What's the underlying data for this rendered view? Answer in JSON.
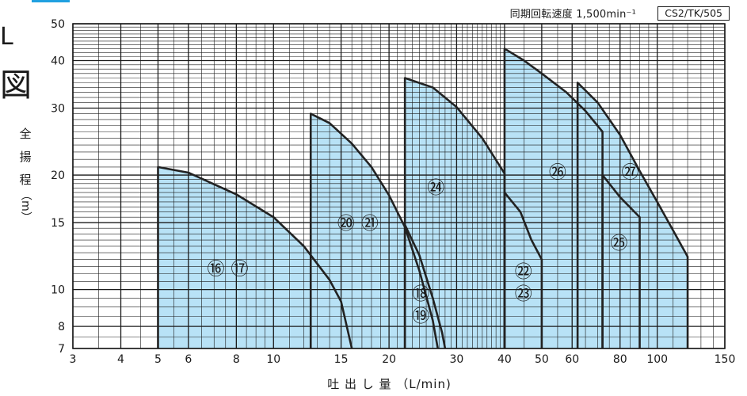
{
  "header": {
    "speed_note": "同期回転速度 1,500min⁻¹",
    "code": "CS2/TK/505"
  },
  "left_title_fragments": [
    "L",
    "図"
  ],
  "chart_data": {
    "type": "area",
    "title": "",
    "xlabel": "吐 出 し 量 （L/min)",
    "ylabel": [
      "全",
      "揚",
      "程",
      "（m）"
    ],
    "x_scale": "log",
    "y_scale": "log",
    "xlim": [
      3,
      150
    ],
    "ylim": [
      7,
      50
    ],
    "x_ticks": [
      3,
      4,
      5,
      6,
      8,
      10,
      15,
      20,
      30,
      40,
      50,
      60,
      80,
      100,
      150
    ],
    "y_ticks": [
      7,
      8,
      10,
      15,
      20,
      30,
      40,
      50
    ],
    "grid": true,
    "fill_color": "#b8e2f6",
    "line_color": "#222222",
    "regions": [
      {
        "name": "16 17",
        "labels": [
          "⑯",
          "⑰"
        ],
        "label_pos": [
          7.6,
          11.3
        ],
        "outline": [
          [
            5,
            7
          ],
          [
            5,
            21
          ],
          [
            6,
            20.3
          ],
          [
            8,
            17.8
          ],
          [
            10,
            15.5
          ],
          [
            12,
            13
          ],
          [
            14,
            10.6
          ],
          [
            15,
            9.3
          ],
          [
            16,
            7
          ]
        ]
      },
      {
        "name": "20 21",
        "labels": [
          "⑳",
          "㉑"
        ],
        "label_pos": [
          16.6,
          14.9
        ],
        "outline": [
          [
            12.5,
            7
          ],
          [
            12.5,
            29
          ],
          [
            14,
            27.4
          ],
          [
            16,
            24.2
          ],
          [
            18,
            21
          ],
          [
            20,
            17.7
          ],
          [
            22,
            14.6
          ],
          [
            24,
            11.2
          ],
          [
            26,
            8.3
          ],
          [
            26.8,
            7
          ]
        ]
      },
      {
        "name": "18 19",
        "labels": [
          "⑱",
          "⑲"
        ],
        "label_pos": [
          24.2,
          9.1
        ],
        "outline": [
          [
            22,
            7
          ],
          [
            22,
            14.8
          ],
          [
            24,
            12.3
          ],
          [
            26,
            9.5
          ],
          [
            27.5,
            7.7
          ],
          [
            28,
            7
          ]
        ]
      },
      {
        "name": "24",
        "labels": [
          "㉔"
        ],
        "label_pos": [
          26.5,
          18.5
        ],
        "outline": [
          [
            22,
            7
          ],
          [
            22,
            36
          ],
          [
            26,
            34
          ],
          [
            30,
            30.2
          ],
          [
            35,
            25
          ],
          [
            40,
            20.2
          ],
          [
            40,
            7
          ]
        ]
      },
      {
        "name": "22 23",
        "labels": [
          "㉒",
          "㉓"
        ],
        "label_pos": [
          44.8,
          10.4
        ],
        "outline": [
          [
            40,
            7
          ],
          [
            40,
            18
          ],
          [
            44,
            16
          ],
          [
            47,
            13.5
          ],
          [
            50,
            12
          ],
          [
            50,
            7
          ]
        ]
      },
      {
        "name": "26",
        "labels": [
          "㉖"
        ],
        "label_pos": [
          55,
          20.3
        ],
        "outline": [
          [
            40,
            7
          ],
          [
            40,
            43
          ],
          [
            45,
            40
          ],
          [
            50,
            37
          ],
          [
            58,
            33
          ],
          [
            65,
            29.5
          ],
          [
            72,
            26
          ],
          [
            72,
            7
          ]
        ]
      },
      {
        "name": "25",
        "labels": [
          "㉕"
        ],
        "label_pos": [
          79.5,
          13.2
        ],
        "outline": [
          [
            72,
            7
          ],
          [
            72,
            20
          ],
          [
            80,
            17.5
          ],
          [
            90,
            15.5
          ],
          [
            90,
            7
          ]
        ]
      },
      {
        "name": "27",
        "labels": [
          "㉗"
        ],
        "label_pos": [
          85,
          20.3
        ],
        "outline": [
          [
            62,
            7
          ],
          [
            62,
            35
          ],
          [
            70,
            31
          ],
          [
            80,
            25.5
          ],
          [
            90,
            20.5
          ],
          [
            100,
            17
          ],
          [
            110,
            14.3
          ],
          [
            120,
            12.2
          ],
          [
            120,
            7
          ]
        ]
      }
    ]
  }
}
